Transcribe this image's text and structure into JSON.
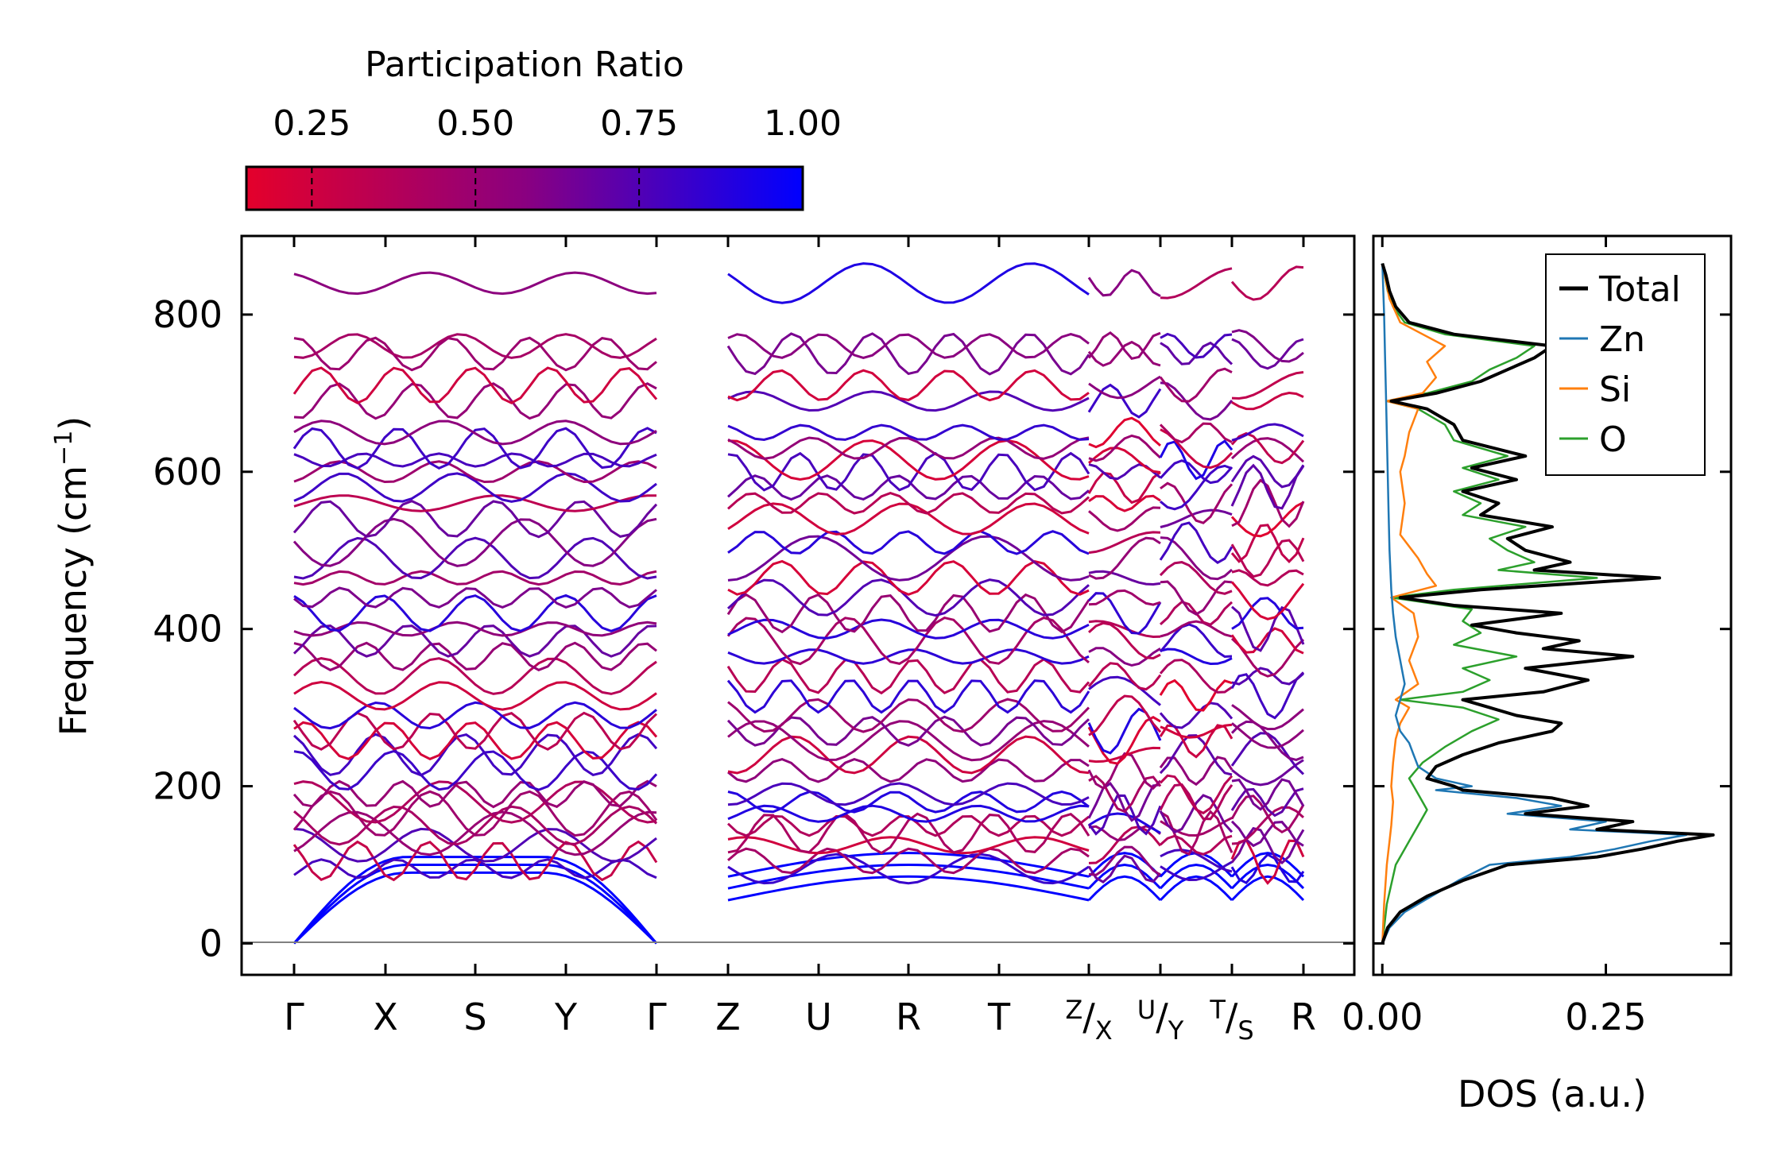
{
  "chart_data": [
    {
      "type": "line",
      "title": "",
      "xlabel": "",
      "ylabel": "Frequency (cm⁻¹)",
      "ylabel_main": "Frequency (cm",
      "ylabel_exp": "−1",
      "ylabel_close": ")",
      "ylim": [
        -40,
        900
      ],
      "yticks": [
        0,
        200,
        400,
        600,
        800
      ],
      "ytick_labels": [
        "0",
        "200",
        "400",
        "600",
        "800"
      ],
      "kpath_labels": [
        "Γ",
        "X",
        "S",
        "Y",
        "Γ",
        "Z",
        "U",
        "R",
        "T",
        "Z/X",
        "U/Y",
        "T/S",
        "R"
      ],
      "path_segments": [
        [
          "Γ",
          "X",
          "S",
          "Y",
          "Γ"
        ],
        [
          "Z",
          "U",
          "R",
          "T",
          "Z"
        ],
        [
          "X",
          "U"
        ],
        [
          "Y",
          "T"
        ],
        [
          "S",
          "R"
        ]
      ],
      "branch_frequencies_at_gamma": [
        0,
        0,
        0,
        95,
        105,
        125,
        140,
        150,
        165,
        180,
        190,
        220,
        240,
        258,
        270,
        290,
        315,
        340,
        365,
        385,
        400,
        420,
        440,
        465,
        490,
        510,
        540,
        560,
        580,
        600,
        615,
        630,
        650,
        690,
        710,
        750,
        760,
        840
      ],
      "colorbar": {
        "label": "Participation Ratio",
        "ticks": [
          0.25,
          0.5,
          0.75,
          1.0
        ],
        "tick_labels": [
          "0.25",
          "0.50",
          "0.75",
          "1.00"
        ],
        "range": [
          0.15,
          1.0
        ],
        "colors": {
          "low": "#e4002b",
          "mid": "#8a0080",
          "high": "#0000ff"
        }
      }
    },
    {
      "type": "line",
      "title": "",
      "xlabel": "DOS (a.u.)",
      "ylabel": "",
      "xlim": [
        -0.01,
        0.39
      ],
      "xticks": [
        0.0,
        0.25
      ],
      "xtick_labels": [
        "0.00",
        "0.25"
      ],
      "ylim": [
        -40,
        900
      ],
      "legend_position": "top-right",
      "series": [
        {
          "name": "Total",
          "color": "#000000",
          "freq": [
            0,
            20,
            40,
            60,
            80,
            100,
            110,
            120,
            130,
            138,
            145,
            155,
            165,
            175,
            185,
            195,
            200,
            210,
            225,
            240,
            255,
            270,
            280,
            290,
            300,
            310,
            320,
            335,
            350,
            365,
            375,
            385,
            395,
            405,
            420,
            430,
            440,
            450,
            465,
            475,
            485,
            500,
            515,
            530,
            545,
            560,
            575,
            590,
            605,
            620,
            640,
            660,
            680,
            690,
            700,
            715,
            730,
            745,
            760,
            775,
            790,
            810,
            830,
            850,
            865
          ],
          "values": [
            0.0,
            0.006,
            0.02,
            0.05,
            0.09,
            0.14,
            0.24,
            0.29,
            0.33,
            0.37,
            0.24,
            0.28,
            0.16,
            0.23,
            0.19,
            0.09,
            0.08,
            0.05,
            0.06,
            0.09,
            0.13,
            0.19,
            0.2,
            0.15,
            0.12,
            0.09,
            0.18,
            0.23,
            0.16,
            0.28,
            0.18,
            0.22,
            0.15,
            0.1,
            0.2,
            0.08,
            0.02,
            0.11,
            0.31,
            0.17,
            0.21,
            0.16,
            0.14,
            0.19,
            0.11,
            0.13,
            0.09,
            0.15,
            0.1,
            0.16,
            0.09,
            0.08,
            0.05,
            0.01,
            0.06,
            0.11,
            0.14,
            0.17,
            0.19,
            0.08,
            0.03,
            0.015,
            0.008,
            0.004,
            0.0
          ]
        },
        {
          "name": "Zn",
          "color": "#1f77b4",
          "freq": [
            0,
            20,
            40,
            60,
            80,
            100,
            110,
            120,
            130,
            138,
            145,
            155,
            165,
            175,
            185,
            195,
            200,
            210,
            225,
            240,
            255,
            270,
            290,
            310,
            330,
            360,
            390,
            420,
            450,
            500,
            550,
            600,
            650,
            700,
            750,
            800,
            865
          ],
          "values": [
            0.0,
            0.008,
            0.025,
            0.055,
            0.085,
            0.12,
            0.21,
            0.26,
            0.3,
            0.34,
            0.21,
            0.25,
            0.14,
            0.2,
            0.15,
            0.06,
            0.1,
            0.06,
            0.04,
            0.035,
            0.03,
            0.02,
            0.015,
            0.02,
            0.025,
            0.02,
            0.015,
            0.012,
            0.01,
            0.008,
            0.007,
            0.006,
            0.005,
            0.004,
            0.003,
            0.002,
            0.0
          ]
        },
        {
          "name": "Si",
          "color": "#ff7f0e",
          "freq": [
            0,
            50,
            100,
            130,
            150,
            180,
            200,
            230,
            260,
            280,
            300,
            310,
            330,
            360,
            390,
            420,
            440,
            455,
            470,
            490,
            520,
            560,
            600,
            620,
            650,
            680,
            690,
            700,
            720,
            740,
            760,
            790,
            820,
            865
          ],
          "values": [
            0.0,
            0.002,
            0.005,
            0.008,
            0.01,
            0.012,
            0.01,
            0.012,
            0.015,
            0.02,
            0.03,
            0.015,
            0.04,
            0.03,
            0.04,
            0.035,
            0.01,
            0.06,
            0.05,
            0.04,
            0.02,
            0.025,
            0.02,
            0.025,
            0.03,
            0.04,
            0.005,
            0.045,
            0.06,
            0.05,
            0.07,
            0.02,
            0.008,
            0.0
          ]
        },
        {
          "name": "O",
          "color": "#2ca02c",
          "freq": [
            0,
            50,
            100,
            130,
            150,
            170,
            190,
            210,
            230,
            250,
            270,
            285,
            300,
            310,
            320,
            335,
            350,
            365,
            380,
            395,
            410,
            425,
            440,
            450,
            465,
            475,
            485,
            500,
            515,
            530,
            545,
            560,
            575,
            590,
            605,
            620,
            640,
            660,
            680,
            690,
            700,
            715,
            730,
            745,
            760,
            775,
            790,
            810,
            830,
            865
          ],
          "values": [
            0.0,
            0.005,
            0.015,
            0.03,
            0.04,
            0.05,
            0.04,
            0.03,
            0.045,
            0.07,
            0.1,
            0.13,
            0.09,
            0.02,
            0.09,
            0.12,
            0.09,
            0.15,
            0.08,
            0.11,
            0.09,
            0.1,
            0.01,
            0.08,
            0.24,
            0.13,
            0.17,
            0.14,
            0.12,
            0.16,
            0.09,
            0.11,
            0.08,
            0.13,
            0.09,
            0.14,
            0.08,
            0.07,
            0.04,
            0.005,
            0.05,
            0.1,
            0.12,
            0.15,
            0.17,
            0.07,
            0.025,
            0.012,
            0.006,
            0.0
          ]
        }
      ]
    }
  ]
}
